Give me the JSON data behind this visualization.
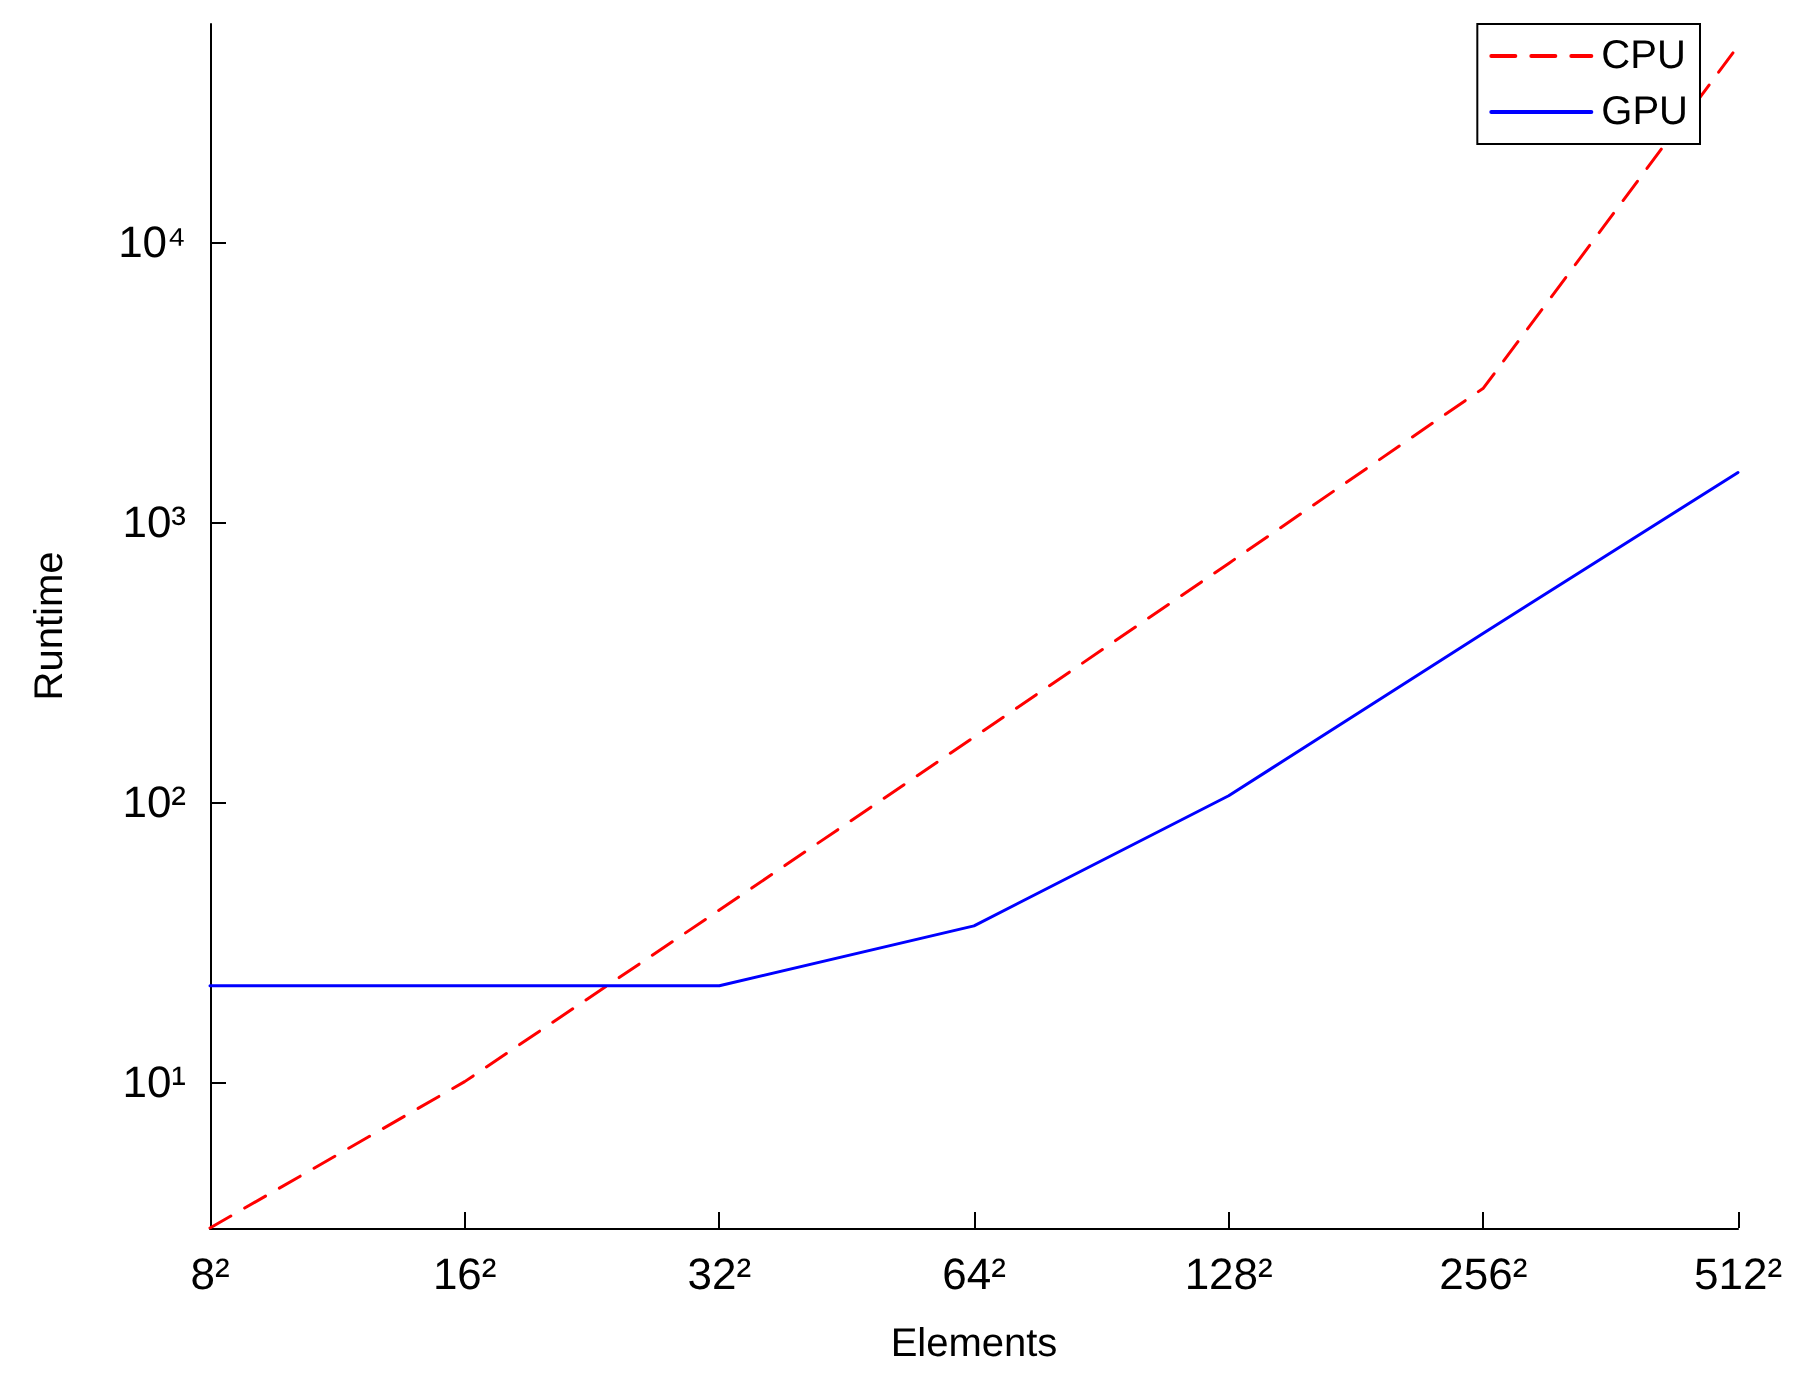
{
  "chart_data": {
    "type": "line",
    "xlabel": "Elements",
    "ylabel": "Runtime",
    "categories": [
      "8²",
      "16²",
      "32²",
      "64²",
      "128²",
      "256²",
      "512²"
    ],
    "series": [
      {
        "name": "CPU",
        "color": "#ff0000",
        "line_style": "dashed",
        "values": [
          3,
          10,
          41,
          170,
          710,
          3000,
          50000
        ]
      },
      {
        "name": "GPU",
        "color": "#0000ff",
        "line_style": "solid",
        "values": [
          22,
          22,
          22,
          36,
          105,
          400,
          1500
        ]
      }
    ],
    "log": "y",
    "ylim": [
      3,
      60000
    ],
    "yticks": [
      {
        "value": 10,
        "label": "10¹"
      },
      {
        "value": 100,
        "label": "10²"
      },
      {
        "value": 1000,
        "label": "10³"
      },
      {
        "value": 10000,
        "label": "10⁴"
      }
    ],
    "grid": false,
    "legend": "top right",
    "marker": "none"
  }
}
